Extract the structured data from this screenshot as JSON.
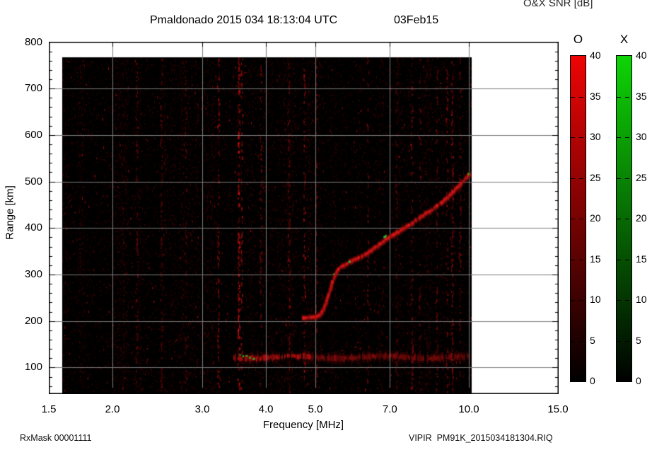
{
  "title": {
    "main": "Pmaldonado 2015 034 18:13:04 UTC",
    "date": "03Feb15"
  },
  "footer": {
    "left": "RxMask 00001111",
    "right": "VIPIR  PM91K_2015034181304.RIQ"
  },
  "chart_data": {
    "type": "heatmap",
    "title": "Pmaldonado 2015 034 18:13:04 UTC 03Feb15",
    "xlabel": "Frequency [MHz]",
    "ylabel": "Range [km]",
    "x_scale": "log",
    "xlim": [
      1.5,
      15.0
    ],
    "ylim_km": [
      43,
      800
    ],
    "x_ticks": [
      1.5,
      2.0,
      3.0,
      4.0,
      5.0,
      7.0,
      10.0,
      15.0
    ],
    "x_tick_labels": [
      "1.5",
      "2.0",
      "3.0",
      "4.0",
      "5.0",
      "7.0",
      "10.0",
      "15.0"
    ],
    "y_ticks": [
      100,
      200,
      300,
      400,
      500,
      600,
      700,
      800
    ],
    "y_minor_step_km": 20,
    "grid": true,
    "grid_color": "#7b7b7b",
    "background_color": "#000000",
    "data_extent": {
      "freq_mhz": [
        1.61,
        10.05
      ],
      "range_km": [
        43,
        767
      ]
    },
    "o_mode_color": "#dd1414",
    "x_mode_color": "#22aa22",
    "f_trace_points": [
      [
        4.72,
        207
      ],
      [
        4.98,
        208
      ],
      [
        5.09,
        213
      ],
      [
        5.16,
        221
      ],
      [
        5.21,
        232
      ],
      [
        5.26,
        244
      ],
      [
        5.31,
        259
      ],
      [
        5.36,
        273
      ],
      [
        5.41,
        288
      ],
      [
        5.46,
        300
      ],
      [
        5.53,
        311
      ],
      [
        5.61,
        317
      ],
      [
        5.73,
        323
      ],
      [
        5.88,
        329
      ],
      [
        6.02,
        335
      ],
      [
        6.18,
        341
      ],
      [
        6.34,
        347
      ],
      [
        6.5,
        356
      ],
      [
        6.67,
        365
      ],
      [
        6.84,
        375
      ],
      [
        7.02,
        382
      ],
      [
        7.2,
        390
      ],
      [
        7.39,
        397
      ],
      [
        7.58,
        405
      ],
      [
        7.77,
        413
      ],
      [
        7.97,
        422
      ],
      [
        8.17,
        430
      ],
      [
        8.38,
        437
      ],
      [
        8.6,
        446
      ],
      [
        8.82,
        455
      ],
      [
        9.05,
        464
      ],
      [
        9.28,
        477
      ],
      [
        9.52,
        489
      ],
      [
        9.71,
        499
      ],
      [
        9.86,
        508
      ],
      [
        9.98,
        514
      ],
      [
        10.05,
        519
      ]
    ],
    "x_mode_specks": [
      [
        5.44,
        301
      ],
      [
        5.82,
        328
      ],
      [
        6.82,
        381
      ],
      [
        6.86,
        384
      ],
      [
        9.98,
        517
      ],
      [
        3.61,
        125
      ],
      [
        3.66,
        125
      ],
      [
        3.72,
        122
      ],
      [
        3.78,
        119
      ],
      [
        3.56,
        127
      ]
    ],
    "e_region": {
      "freq_range_mhz": [
        3.45,
        10.0
      ],
      "range_center_km": 122,
      "strong_below_mhz": 4.9
    },
    "rfi_stripes": [
      {
        "freq_mhz": 2.23,
        "strength": 0.3
      },
      {
        "freq_mhz": 2.49,
        "strength": 0.25
      },
      {
        "freq_mhz": 2.78,
        "strength": 0.15
      },
      {
        "freq_mhz": 3.22,
        "strength": 0.5
      },
      {
        "freq_mhz": 3.53,
        "strength": 0.85
      },
      {
        "freq_mhz": 3.58,
        "strength": 0.5
      },
      {
        "freq_mhz": 3.9,
        "strength": 0.3
      },
      {
        "freq_mhz": 4.43,
        "strength": 0.35
      },
      {
        "freq_mhz": 4.75,
        "strength": 0.55
      },
      {
        "freq_mhz": 5.01,
        "strength": 0.3
      },
      {
        "freq_mhz": 6.33,
        "strength": 0.2
      },
      {
        "freq_mhz": 7.2,
        "strength": 0.2
      },
      {
        "freq_mhz": 7.72,
        "strength": 0.35
      },
      {
        "freq_mhz": 8.0,
        "strength": 0.2
      },
      {
        "freq_mhz": 8.64,
        "strength": 0.3
      },
      {
        "freq_mhz": 9.04,
        "strength": 0.35
      },
      {
        "freq_mhz": 9.26,
        "strength": 0.5
      },
      {
        "freq_mhz": 9.6,
        "strength": 0.3
      }
    ],
    "colorbars": {
      "title": "O&X SNR [dB]",
      "range_db": [
        0,
        40
      ],
      "ticks": [
        40,
        35,
        30,
        25,
        20,
        15,
        10,
        5,
        0
      ],
      "bars": [
        {
          "label": "O",
          "top_color": "#ee0404"
        },
        {
          "label": "X",
          "top_color": "#0ed406"
        }
      ]
    }
  }
}
